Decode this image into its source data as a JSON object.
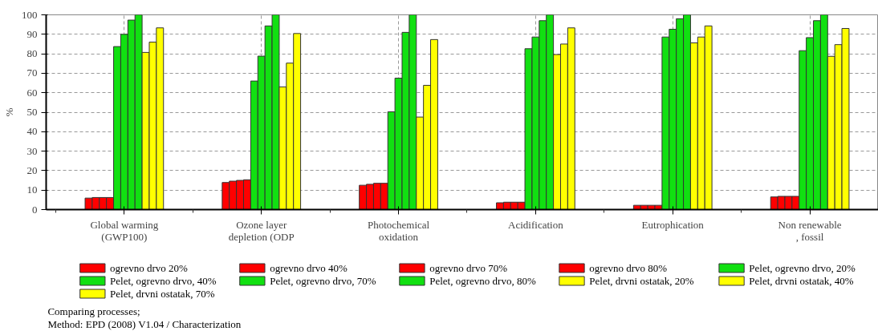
{
  "chart_data": {
    "type": "bar",
    "ylabel": "%",
    "categories": [
      "Global warming\n(GWP100)",
      "Ozone layer\ndepletion (ODP",
      "Photochemical\noxidation",
      "Acidification",
      "Eutrophication",
      "Non renewable\n, fossil"
    ],
    "series": [
      {
        "name": "ogrevno drvo 20%",
        "color": "#ff0000",
        "values": [
          5.9,
          13.9,
          12.5,
          3.5,
          2.2,
          6.5
        ]
      },
      {
        "name": "ogrevno drvo 40%",
        "color": "#ff0000",
        "values": [
          6.2,
          14.6,
          13,
          3.8,
          2.2,
          6.8
        ]
      },
      {
        "name": "ogrevno drvo 70%",
        "color": "#ff0000",
        "values": [
          6.2,
          15,
          13.5,
          3.8,
          2.2,
          6.8
        ]
      },
      {
        "name": "ogrevno drvo 80%",
        "color": "#ff0000",
        "values": [
          6.2,
          15.3,
          13.5,
          3.8,
          2.2,
          6.8
        ]
      },
      {
        "name": "Pelet, ogrevno drvo, 20%",
        "color": "#11e011",
        "values": [
          83.7,
          66,
          50.2,
          82.6,
          88.6,
          81.6
        ]
      },
      {
        "name": "Pelet, ogrevno drvo, 40%",
        "color": "#11e011",
        "values": [
          90,
          78.8,
          67.5,
          88.6,
          92.6,
          88.3
        ]
      },
      {
        "name": "Pelet, ogrevno drvo, 70%",
        "color": "#11e011",
        "values": [
          97.3,
          94.3,
          91,
          97,
          98,
          97
        ]
      },
      {
        "name": "Pelet, ogrevno drvo, 80%",
        "color": "#11e011",
        "values": [
          100,
          100,
          100,
          100,
          100,
          100
        ]
      },
      {
        "name": "Pelet, drvni ostatak, 20%",
        "color": "#ffff00",
        "values": [
          80.7,
          63,
          47.5,
          79.6,
          85.6,
          78.7
        ]
      },
      {
        "name": "Pelet, drvni ostatak, 40%",
        "color": "#ffff00",
        "values": [
          86,
          75.2,
          63.8,
          85,
          88.6,
          84.7
        ]
      },
      {
        "name": "Pelet, drvni ostatak, 70%",
        "color": "#ffff00",
        "values": [
          93.3,
          90.4,
          87.3,
          93.3,
          94.3,
          93
        ]
      }
    ],
    "ylim": [
      0,
      100
    ],
    "yticks": [
      0,
      10,
      20,
      30,
      40,
      50,
      60,
      70,
      80,
      90,
      100
    ],
    "grid": true,
    "legend": "bottom",
    "annotations": [
      "Comparing processes;",
      "Method: EPD (2008) V1.04 / Characterization"
    ]
  }
}
